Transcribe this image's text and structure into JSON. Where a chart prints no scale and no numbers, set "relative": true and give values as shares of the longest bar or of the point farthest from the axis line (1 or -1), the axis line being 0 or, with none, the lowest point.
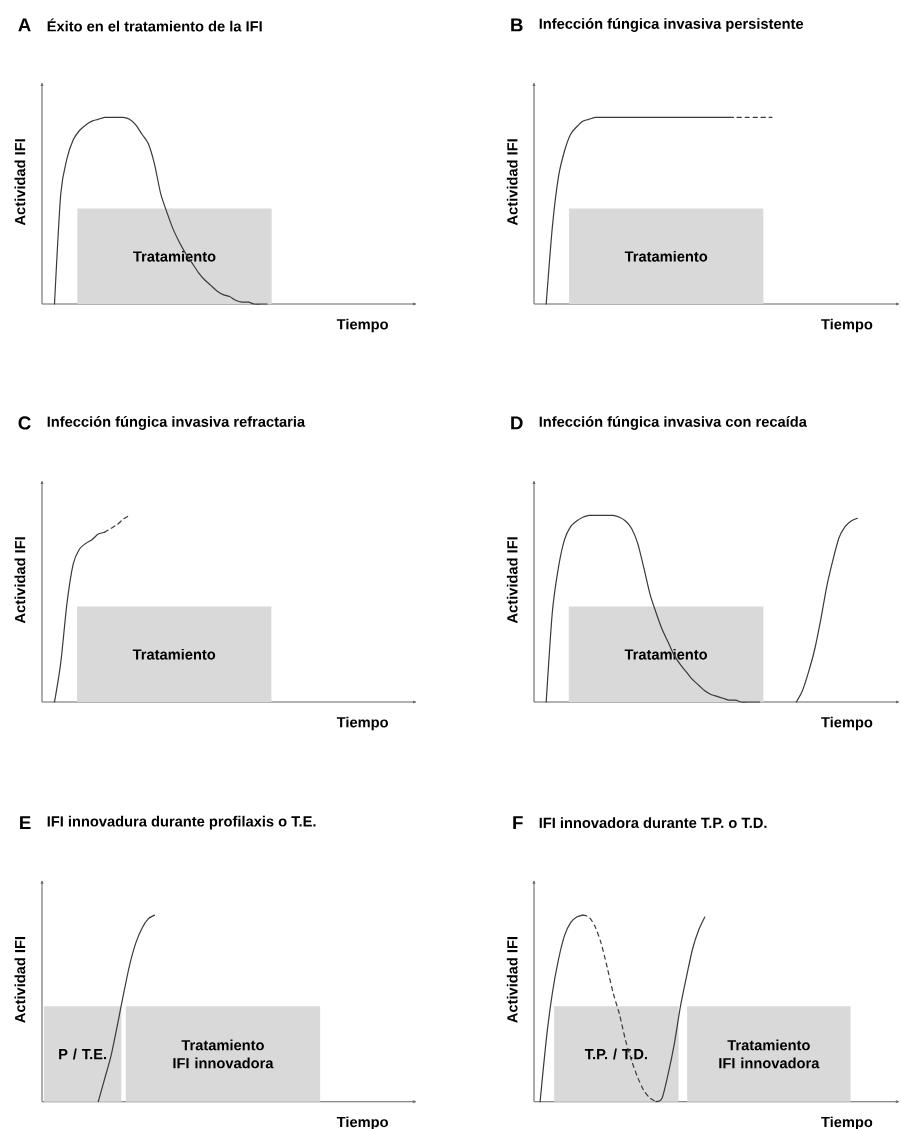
{
  "chart_data": [
    {
      "type": "line",
      "title": "Éxito en el tratamiento de la IFI",
      "annotations": [
        "A",
        "Tratamiento"
      ],
      "xlabel": "Tiempo",
      "ylabel": "Actividad IFI",
      "relative": true,
      "categories": [
        null,
        null,
        null,
        null,
        null,
        null,
        null,
        null,
        null,
        null,
        null,
        null,
        null,
        null,
        null,
        null,
        null,
        null,
        null,
        null,
        null,
        null,
        null,
        null,
        null,
        null,
        null,
        null,
        null,
        null,
        null,
        null,
        null,
        null,
        null,
        null,
        null,
        null,
        null,
        null,
        null,
        null,
        null,
        null,
        null,
        null,
        null,
        null,
        null,
        null,
        null,
        null,
        null,
        null,
        null,
        null,
        null,
        null,
        null,
        null,
        null
      ],
      "series": [
        {
          "color": "#3a3a3a",
          "line_style": "solid",
          "values": [
            null,
            null,
            0,
            0.59,
            0.78,
            0.88,
            0.93,
            0.96,
            0.98,
            0.99,
            1,
            1,
            1,
            1,
            0.99,
            0.96,
            0.91,
            0.86,
            0.75,
            0.59,
            0.49,
            0.4,
            0.33,
            0.27,
            0.22,
            0.17,
            0.13,
            0.1,
            0.07,
            0.05,
            0.04,
            0.02,
            0.01,
            0.01,
            0,
            0,
            0,
            null,
            null,
            null,
            null,
            null,
            null,
            null,
            null,
            null,
            null,
            null,
            null,
            null,
            null,
            null,
            null,
            null,
            null,
            null,
            null,
            null,
            null,
            null,
            null
          ]
        }
      ]
    },
    {
      "type": "line",
      "title": "Infección fúngica invasiva persistente",
      "annotations": [
        "B",
        "Tratamiento"
      ],
      "xlabel": "Tiempo",
      "ylabel": "Actividad IFI",
      "relative": true,
      "categories": [
        null,
        null,
        null,
        null,
        null,
        null,
        null,
        null,
        null,
        null,
        null,
        null,
        null,
        null,
        null,
        null,
        null,
        null,
        null,
        null,
        null,
        null,
        null,
        null,
        null,
        null,
        null,
        null,
        null,
        null,
        null,
        null,
        null,
        null,
        null,
        null,
        null,
        null,
        null,
        null,
        null,
        null,
        null,
        null,
        null,
        null,
        null,
        null,
        null,
        null,
        null,
        null,
        null,
        null,
        null,
        null,
        null,
        null,
        null,
        null,
        null
      ],
      "series": [
        {
          "color": "#3a3a3a",
          "line_style": "solid",
          "values": [
            null,
            null,
            0,
            0.41,
            0.68,
            0.82,
            0.91,
            0.95,
            0.98,
            0.99,
            1,
            1,
            1,
            1,
            1,
            1,
            1,
            1,
            1,
            1,
            1,
            1,
            1,
            1,
            1,
            1,
            1,
            1,
            1,
            1,
            1,
            1,
            1,
            null,
            null,
            null,
            null,
            null,
            null,
            null,
            null,
            null,
            null,
            null,
            null,
            null,
            null,
            null,
            null,
            null,
            null,
            null,
            null,
            null,
            null,
            null,
            null,
            null,
            null,
            null,
            null
          ]
        },
        {
          "color": "#3a3a3a",
          "line_style": "dashed",
          "values": [
            null,
            null,
            null,
            null,
            null,
            null,
            null,
            null,
            null,
            null,
            null,
            null,
            null,
            null,
            null,
            null,
            null,
            null,
            null,
            null,
            null,
            null,
            null,
            null,
            null,
            null,
            null,
            null,
            null,
            null,
            null,
            null,
            1,
            1,
            1,
            1,
            1,
            1,
            1,
            1,
            null,
            null,
            null,
            null,
            null,
            null,
            null,
            null,
            null,
            null,
            null,
            null,
            null,
            null,
            null,
            null,
            null,
            null,
            null,
            null,
            null
          ]
        }
      ]
    },
    {
      "type": "line",
      "title": "Infección fúngica invasiva refractaria",
      "annotations": [
        "C",
        "Tratamiento"
      ],
      "xlabel": "Tiempo",
      "ylabel": "Actividad IFI",
      "relative": true,
      "categories": [
        null,
        null,
        null,
        null,
        null,
        null,
        null,
        null,
        null,
        null,
        null,
        null,
        null,
        null,
        null,
        null,
        null,
        null,
        null,
        null,
        null,
        null,
        null,
        null,
        null,
        null,
        null,
        null,
        null,
        null,
        null,
        null,
        null,
        null,
        null,
        null,
        null,
        null,
        null,
        null,
        null,
        null,
        null,
        null,
        null,
        null,
        null,
        null,
        null,
        null,
        null,
        null,
        null,
        null,
        null,
        null,
        null,
        null,
        null,
        null,
        null
      ],
      "series": [
        {
          "color": "#3a3a3a",
          "line_style": "solid",
          "values": [
            null,
            null,
            0,
            0.21,
            0.53,
            0.74,
            0.82,
            0.85,
            0.87,
            0.9,
            0.91,
            null,
            null,
            null,
            null,
            null,
            null,
            null,
            null,
            null,
            null,
            null,
            null,
            null,
            null,
            null,
            null,
            null,
            null,
            null,
            null,
            null,
            null,
            null,
            null,
            null,
            null,
            null,
            null,
            null,
            null,
            null,
            null,
            null,
            null,
            null,
            null,
            null,
            null,
            null,
            null,
            null,
            null,
            null,
            null,
            null,
            null,
            null,
            null,
            null,
            null
          ]
        },
        {
          "color": "#3a3a3a",
          "line_style": "dashed",
          "values": [
            null,
            null,
            null,
            null,
            null,
            null,
            null,
            null,
            null,
            null,
            0.91,
            0.93,
            0.95,
            0.98,
            1,
            null,
            null,
            null,
            null,
            null,
            null,
            null,
            null,
            null,
            null,
            null,
            null,
            null,
            null,
            null,
            null,
            null,
            null,
            null,
            null,
            null,
            null,
            null,
            null,
            null,
            null,
            null,
            null,
            null,
            null,
            null,
            null,
            null,
            null,
            null,
            null,
            null,
            null,
            null,
            null,
            null,
            null,
            null,
            null,
            null,
            null
          ]
        }
      ]
    },
    {
      "type": "line",
      "title": "Infección fúngica invasiva con recaída",
      "annotations": [
        "D",
        "Tratamiento"
      ],
      "xlabel": "Tiempo",
      "ylabel": "Actividad IFI",
      "relative": true,
      "categories": [
        null,
        null,
        null,
        null,
        null,
        null,
        null,
        null,
        null,
        null,
        null,
        null,
        null,
        null,
        null,
        null,
        null,
        null,
        null,
        null,
        null,
        null,
        null,
        null,
        null,
        null,
        null,
        null,
        null,
        null,
        null,
        null,
        null,
        null,
        null,
        null,
        null,
        null,
        null,
        null,
        null,
        null,
        null,
        null,
        null,
        null,
        null,
        null,
        null,
        null,
        null,
        null,
        null,
        null,
        null,
        null,
        null,
        null,
        null,
        null,
        null
      ],
      "series": [
        {
          "color": "#3a3a3a",
          "line_style": "solid",
          "values": [
            null,
            null,
            0,
            0.48,
            0.72,
            0.87,
            0.94,
            0.97,
            0.99,
            1,
            1,
            1,
            1,
            1,
            0.99,
            0.97,
            0.93,
            0.85,
            0.72,
            0.58,
            0.48,
            0.39,
            0.32,
            0.25,
            0.2,
            0.16,
            0.12,
            0.09,
            0.06,
            0.04,
            0.03,
            0.02,
            0.01,
            0.01,
            0,
            0,
            0,
            0,
            null,
            null,
            null,
            null,
            null,
            0,
            0.06,
            0.16,
            0.28,
            0.44,
            0.62,
            0.76,
            0.88,
            0.94,
            0.97,
            0.985,
            null,
            null,
            null,
            null,
            null,
            null,
            null
          ]
        }
      ]
    },
    {
      "type": "line",
      "title": "IFI innovadura durante profilaxis o T.E.",
      "annotations": [
        "E",
        "P / T.E.",
        "Tratamiento IFI innovadora"
      ],
      "xlabel": "Tiempo",
      "ylabel": "Actividad IFI",
      "relative": true,
      "categories": [
        null,
        null,
        null,
        null,
        null,
        null,
        null,
        null,
        null,
        null,
        null,
        null,
        null,
        null,
        null,
        null,
        null,
        null,
        null,
        null,
        null,
        null,
        null,
        null,
        null,
        null,
        null,
        null,
        null,
        null,
        null,
        null,
        null,
        null,
        null,
        null,
        null,
        null,
        null,
        null,
        null,
        null,
        null,
        null,
        null,
        null,
        null,
        null,
        null,
        null,
        null,
        null,
        null,
        null,
        null,
        null,
        null,
        null,
        null,
        null,
        null
      ],
      "series": [
        {
          "color": "#3a3a3a",
          "line_style": "solid",
          "values": [
            null,
            null,
            null,
            null,
            null,
            null,
            null,
            null,
            null,
            0,
            0.12,
            0.24,
            0.4,
            0.57,
            0.73,
            0.85,
            0.93,
            0.98,
            1,
            null,
            null,
            null,
            null,
            null,
            null,
            null,
            null,
            null,
            null,
            null,
            null,
            null,
            null,
            null,
            null,
            null,
            null,
            null,
            null,
            null,
            null,
            null,
            null,
            null,
            null,
            null,
            null,
            null,
            null,
            null,
            null,
            null,
            null,
            null,
            null,
            null,
            null,
            null,
            null,
            null,
            null
          ]
        }
      ]
    },
    {
      "type": "line",
      "title": "IFI innovadora durante T.P. o T.D.",
      "annotations": [
        "F",
        "T.P. / T.D.",
        "Tratamiento IFI innovadora"
      ],
      "xlabel": "Tiempo",
      "ylabel": "Actividad IFI",
      "relative": true,
      "categories": [
        null,
        null,
        null,
        null,
        null,
        null,
        null,
        null,
        null,
        null,
        null,
        null,
        null,
        null,
        null,
        null,
        null,
        null,
        null,
        null,
        null,
        null,
        null,
        null,
        null,
        null,
        null,
        null,
        null,
        null,
        null,
        null,
        null,
        null,
        null,
        null,
        null,
        null,
        null,
        null,
        null,
        null,
        null,
        null,
        null,
        null,
        null,
        null,
        null,
        null,
        null,
        null,
        null,
        null,
        null,
        null,
        null,
        null,
        null,
        null,
        null
      ],
      "series": [
        {
          "color": "#3a3a3a",
          "line_style": "solid",
          "values": [
            null,
            0,
            0.33,
            0.58,
            0.76,
            0.89,
            0.96,
            0.99,
            1,
            null,
            null,
            null,
            null,
            null,
            null,
            null,
            null,
            null,
            null,
            null,
            0,
            0.02,
            0.15,
            0.31,
            0.51,
            0.67,
            0.82,
            0.92,
            0.99,
            null,
            null,
            null,
            null,
            null,
            null,
            null,
            null,
            null,
            null,
            null,
            null,
            null,
            null,
            null,
            null,
            null,
            null,
            null,
            null,
            null,
            null,
            null,
            null,
            null,
            null,
            null,
            null,
            null,
            null,
            null,
            null
          ]
        },
        {
          "color": "#3a3a3a",
          "line_style": "dashed",
          "values": [
            null,
            null,
            null,
            null,
            null,
            null,
            null,
            null,
            1,
            0.99,
            0.94,
            0.85,
            0.72,
            0.58,
            0.47,
            0.33,
            0.22,
            0.13,
            0.06,
            0.02,
            0,
            null,
            null,
            null,
            null,
            null,
            null,
            null,
            null,
            null,
            null,
            null,
            null,
            null,
            null,
            null,
            null,
            null,
            null,
            null,
            null,
            null,
            null,
            null,
            null,
            null,
            null,
            null,
            null,
            null,
            null,
            null,
            null,
            null,
            null,
            null,
            null,
            null,
            null,
            null,
            null
          ]
        }
      ]
    }
  ]
}
